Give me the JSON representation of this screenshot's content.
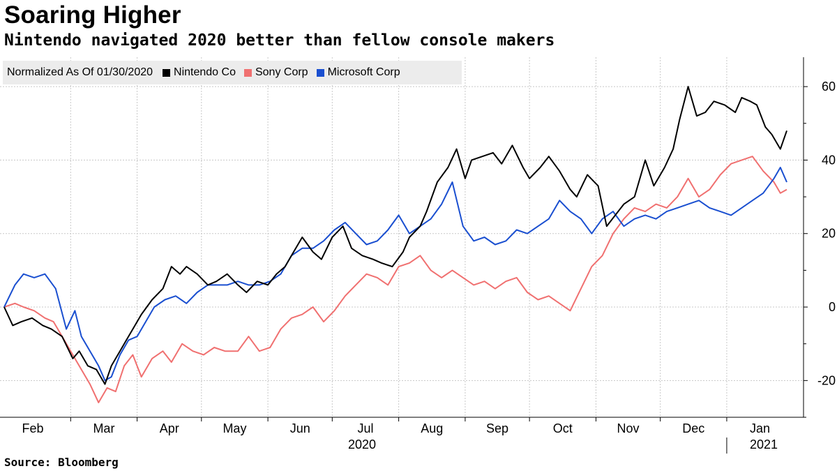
{
  "title": "Soaring Higher",
  "subtitle": "Nintendo navigated 2020 better than fellow console makers",
  "source": "Source: Bloomberg",
  "legend": {
    "normalized": "Normalized As Of 01/30/2020",
    "items": [
      {
        "label": "Nintendo Co",
        "color": "#000000"
      },
      {
        "label": "Sony Corp",
        "color": "#f07070"
      },
      {
        "label": "Microsoft Corp",
        "color": "#1a4fd0"
      }
    ]
  },
  "chart_data": {
    "type": "line",
    "x_axis": {
      "months": [
        "Feb",
        "Mar",
        "Apr",
        "May",
        "Jun",
        "Jul",
        "Aug",
        "Sep",
        "Oct",
        "Nov",
        "Dec",
        "Jan"
      ],
      "years": [
        "2020",
        "2021"
      ],
      "range": [
        "2020-01-30",
        "2021-01-29"
      ]
    },
    "ylim": [
      -30,
      68
    ],
    "yticks": [
      -20,
      0,
      20,
      40,
      60
    ],
    "grid": true,
    "legend_position": "top-left",
    "series": [
      {
        "name": "Nintendo Co",
        "color": "#000000",
        "points": [
          [
            "2020-01-30",
            0
          ],
          [
            "2020-02-03",
            -5
          ],
          [
            "2020-02-07",
            -4
          ],
          [
            "2020-02-12",
            -3
          ],
          [
            "2020-02-17",
            -5
          ],
          [
            "2020-02-21",
            -6
          ],
          [
            "2020-02-26",
            -8
          ],
          [
            "2020-03-02",
            -14
          ],
          [
            "2020-03-05",
            -12
          ],
          [
            "2020-03-09",
            -16
          ],
          [
            "2020-03-13",
            -17
          ],
          [
            "2020-03-17",
            -21
          ],
          [
            "2020-03-20",
            -16
          ],
          [
            "2020-03-24",
            -12
          ],
          [
            "2020-03-27",
            -9
          ],
          [
            "2020-03-31",
            -5
          ],
          [
            "2020-04-03",
            -2
          ],
          [
            "2020-04-08",
            2
          ],
          [
            "2020-04-13",
            5
          ],
          [
            "2020-04-17",
            11
          ],
          [
            "2020-04-21",
            9
          ],
          [
            "2020-04-24",
            11
          ],
          [
            "2020-04-29",
            9
          ],
          [
            "2020-05-04",
            6
          ],
          [
            "2020-05-08",
            7
          ],
          [
            "2020-05-13",
            9
          ],
          [
            "2020-05-18",
            6
          ],
          [
            "2020-05-22",
            4
          ],
          [
            "2020-05-27",
            7
          ],
          [
            "2020-06-01",
            6
          ],
          [
            "2020-06-05",
            9
          ],
          [
            "2020-06-09",
            11
          ],
          [
            "2020-06-12",
            14
          ],
          [
            "2020-06-17",
            19
          ],
          [
            "2020-06-22",
            15
          ],
          [
            "2020-06-26",
            13
          ],
          [
            "2020-07-01",
            19
          ],
          [
            "2020-07-06",
            22
          ],
          [
            "2020-07-10",
            16
          ],
          [
            "2020-07-15",
            14
          ],
          [
            "2020-07-20",
            13
          ],
          [
            "2020-07-24",
            12
          ],
          [
            "2020-07-29",
            11
          ],
          [
            "2020-08-03",
            15
          ],
          [
            "2020-08-06",
            19
          ],
          [
            "2020-08-11",
            22
          ],
          [
            "2020-08-14",
            26
          ],
          [
            "2020-08-19",
            34
          ],
          [
            "2020-08-24",
            38
          ],
          [
            "2020-08-28",
            43
          ],
          [
            "2020-09-01",
            35
          ],
          [
            "2020-09-04",
            40
          ],
          [
            "2020-09-09",
            41
          ],
          [
            "2020-09-14",
            42
          ],
          [
            "2020-09-18",
            39
          ],
          [
            "2020-09-23",
            44
          ],
          [
            "2020-09-28",
            38
          ],
          [
            "2020-10-01",
            35
          ],
          [
            "2020-10-06",
            38
          ],
          [
            "2020-10-10",
            41
          ],
          [
            "2020-10-15",
            37
          ],
          [
            "2020-10-20",
            32
          ],
          [
            "2020-10-23",
            30
          ],
          [
            "2020-10-28",
            36
          ],
          [
            "2020-11-02",
            33
          ],
          [
            "2020-11-06",
            22
          ],
          [
            "2020-11-10",
            25
          ],
          [
            "2020-11-14",
            28
          ],
          [
            "2020-11-19",
            30
          ],
          [
            "2020-11-24",
            40
          ],
          [
            "2020-11-28",
            33
          ],
          [
            "2020-12-03",
            38
          ],
          [
            "2020-12-07",
            43
          ],
          [
            "2020-12-10",
            51
          ],
          [
            "2020-12-14",
            60
          ],
          [
            "2020-12-18",
            52
          ],
          [
            "2020-12-22",
            53
          ],
          [
            "2020-12-26",
            56
          ],
          [
            "2020-12-31",
            55
          ],
          [
            "2021-01-05",
            53
          ],
          [
            "2021-01-08",
            57
          ],
          [
            "2021-01-12",
            56
          ],
          [
            "2021-01-15",
            55
          ],
          [
            "2021-01-19",
            49
          ],
          [
            "2021-01-22",
            47
          ],
          [
            "2021-01-26",
            43
          ],
          [
            "2021-01-29",
            48
          ]
        ]
      },
      {
        "name": "Sony Corp",
        "color": "#f07070",
        "points": [
          [
            "2020-01-30",
            0
          ],
          [
            "2020-02-04",
            1
          ],
          [
            "2020-02-08",
            0
          ],
          [
            "2020-02-13",
            -1
          ],
          [
            "2020-02-18",
            -3
          ],
          [
            "2020-02-22",
            -4
          ],
          [
            "2020-02-27",
            -9
          ],
          [
            "2020-03-03",
            -14
          ],
          [
            "2020-03-06",
            -17
          ],
          [
            "2020-03-10",
            -21
          ],
          [
            "2020-03-14",
            -26
          ],
          [
            "2020-03-18",
            -22
          ],
          [
            "2020-03-22",
            -23
          ],
          [
            "2020-03-26",
            -16
          ],
          [
            "2020-03-30",
            -13
          ],
          [
            "2020-04-03",
            -19
          ],
          [
            "2020-04-08",
            -14
          ],
          [
            "2020-04-13",
            -12
          ],
          [
            "2020-04-17",
            -15
          ],
          [
            "2020-04-22",
            -10
          ],
          [
            "2020-04-27",
            -12
          ],
          [
            "2020-05-02",
            -13
          ],
          [
            "2020-05-07",
            -11
          ],
          [
            "2020-05-12",
            -12
          ],
          [
            "2020-05-18",
            -12
          ],
          [
            "2020-05-23",
            -8
          ],
          [
            "2020-05-28",
            -12
          ],
          [
            "2020-06-02",
            -11
          ],
          [
            "2020-06-07",
            -6
          ],
          [
            "2020-06-12",
            -3
          ],
          [
            "2020-06-17",
            -2
          ],
          [
            "2020-06-22",
            0
          ],
          [
            "2020-06-27",
            -4
          ],
          [
            "2020-07-02",
            -1
          ],
          [
            "2020-07-07",
            3
          ],
          [
            "2020-07-12",
            6
          ],
          [
            "2020-07-17",
            9
          ],
          [
            "2020-07-22",
            8
          ],
          [
            "2020-07-27",
            6
          ],
          [
            "2020-08-01",
            11
          ],
          [
            "2020-08-06",
            12
          ],
          [
            "2020-08-11",
            14
          ],
          [
            "2020-08-16",
            10
          ],
          [
            "2020-08-21",
            8
          ],
          [
            "2020-08-26",
            10
          ],
          [
            "2020-08-31",
            8
          ],
          [
            "2020-09-05",
            6
          ],
          [
            "2020-09-10",
            7
          ],
          [
            "2020-09-15",
            5
          ],
          [
            "2020-09-20",
            7
          ],
          [
            "2020-09-25",
            8
          ],
          [
            "2020-09-30",
            4
          ],
          [
            "2020-10-05",
            2
          ],
          [
            "2020-10-10",
            3
          ],
          [
            "2020-10-15",
            1
          ],
          [
            "2020-10-20",
            -1
          ],
          [
            "2020-10-25",
            5
          ],
          [
            "2020-10-30",
            11
          ],
          [
            "2020-11-04",
            14
          ],
          [
            "2020-11-09",
            20
          ],
          [
            "2020-11-14",
            24
          ],
          [
            "2020-11-19",
            27
          ],
          [
            "2020-11-24",
            26
          ],
          [
            "2020-11-29",
            28
          ],
          [
            "2020-12-04",
            27
          ],
          [
            "2020-12-09",
            30
          ],
          [
            "2020-12-14",
            35
          ],
          [
            "2020-12-19",
            30
          ],
          [
            "2020-12-24",
            32
          ],
          [
            "2020-12-29",
            36
          ],
          [
            "2021-01-03",
            39
          ],
          [
            "2021-01-08",
            40
          ],
          [
            "2021-01-13",
            41
          ],
          [
            "2021-01-18",
            37
          ],
          [
            "2021-01-23",
            34
          ],
          [
            "2021-01-26",
            31
          ],
          [
            "2021-01-29",
            32
          ]
        ]
      },
      {
        "name": "Microsoft Corp",
        "color": "#1a4fd0",
        "points": [
          [
            "2020-01-30",
            0
          ],
          [
            "2020-02-04",
            6
          ],
          [
            "2020-02-08",
            9
          ],
          [
            "2020-02-13",
            8
          ],
          [
            "2020-02-18",
            9
          ],
          [
            "2020-02-23",
            5
          ],
          [
            "2020-02-28",
            -6
          ],
          [
            "2020-03-03",
            -1
          ],
          [
            "2020-03-06",
            -8
          ],
          [
            "2020-03-10",
            -12
          ],
          [
            "2020-03-14",
            -16
          ],
          [
            "2020-03-17",
            -20
          ],
          [
            "2020-03-20",
            -19
          ],
          [
            "2020-03-24",
            -13
          ],
          [
            "2020-03-28",
            -9
          ],
          [
            "2020-04-01",
            -8
          ],
          [
            "2020-04-05",
            -4
          ],
          [
            "2020-04-09",
            0
          ],
          [
            "2020-04-14",
            2
          ],
          [
            "2020-04-19",
            3
          ],
          [
            "2020-04-24",
            1
          ],
          [
            "2020-04-29",
            4
          ],
          [
            "2020-05-04",
            6
          ],
          [
            "2020-05-08",
            6
          ],
          [
            "2020-05-13",
            6
          ],
          [
            "2020-05-18",
            7
          ],
          [
            "2020-05-23",
            6
          ],
          [
            "2020-05-28",
            6
          ],
          [
            "2020-06-02",
            7
          ],
          [
            "2020-06-07",
            9
          ],
          [
            "2020-06-12",
            14
          ],
          [
            "2020-06-17",
            16
          ],
          [
            "2020-06-22",
            16
          ],
          [
            "2020-06-27",
            18
          ],
          [
            "2020-07-02",
            21
          ],
          [
            "2020-07-07",
            23
          ],
          [
            "2020-07-12",
            20
          ],
          [
            "2020-07-17",
            17
          ],
          [
            "2020-07-22",
            18
          ],
          [
            "2020-07-27",
            21
          ],
          [
            "2020-08-01",
            25
          ],
          [
            "2020-08-06",
            20
          ],
          [
            "2020-08-11",
            22
          ],
          [
            "2020-08-16",
            24
          ],
          [
            "2020-08-21",
            28
          ],
          [
            "2020-08-26",
            34
          ],
          [
            "2020-08-31",
            22
          ],
          [
            "2020-09-05",
            18
          ],
          [
            "2020-09-10",
            19
          ],
          [
            "2020-09-15",
            17
          ],
          [
            "2020-09-20",
            18
          ],
          [
            "2020-09-25",
            21
          ],
          [
            "2020-09-30",
            20
          ],
          [
            "2020-10-05",
            22
          ],
          [
            "2020-10-10",
            24
          ],
          [
            "2020-10-15",
            29
          ],
          [
            "2020-10-20",
            26
          ],
          [
            "2020-10-25",
            24
          ],
          [
            "2020-10-30",
            20
          ],
          [
            "2020-11-04",
            24
          ],
          [
            "2020-11-09",
            26
          ],
          [
            "2020-11-14",
            22
          ],
          [
            "2020-11-19",
            24
          ],
          [
            "2020-11-24",
            25
          ],
          [
            "2020-11-29",
            24
          ],
          [
            "2020-12-04",
            26
          ],
          [
            "2020-12-09",
            27
          ],
          [
            "2020-12-14",
            28
          ],
          [
            "2020-12-19",
            29
          ],
          [
            "2020-12-24",
            27
          ],
          [
            "2020-12-29",
            26
          ],
          [
            "2021-01-03",
            25
          ],
          [
            "2021-01-08",
            27
          ],
          [
            "2021-01-13",
            29
          ],
          [
            "2021-01-18",
            31
          ],
          [
            "2021-01-23",
            35
          ],
          [
            "2021-01-26",
            38
          ],
          [
            "2021-01-29",
            34
          ]
        ]
      }
    ]
  }
}
